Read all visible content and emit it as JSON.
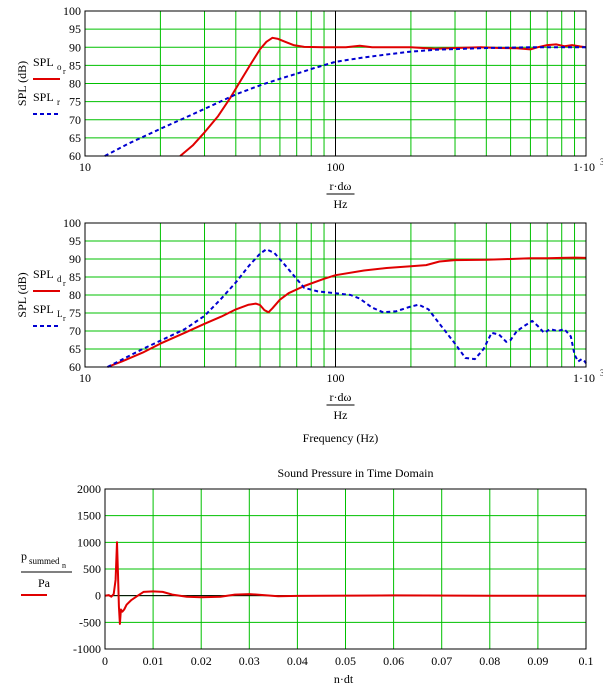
{
  "colors": {
    "grid_green": "#00c000",
    "grid_black": "#000000",
    "series_red": "#e00000",
    "series_blue": "#0000d0",
    "frame": "#000000"
  },
  "chart_data": [
    {
      "type": "line",
      "xscale": "log",
      "xlim": [
        10,
        1000
      ],
      "ylim": [
        60,
        100
      ],
      "title": "",
      "ylabel": "SPL (dB)",
      "xlabel_num": "r·dω",
      "xlabel_den": "Hz",
      "below_label": "",
      "x_tick_labels": [
        "10",
        "100",
        "1·10",
        "3"
      ],
      "y_ticks": [
        60,
        65,
        70,
        75,
        80,
        85,
        90,
        95,
        100
      ],
      "grid": true,
      "legend": "left",
      "series": [
        {
          "name": "SPL",
          "subscript": "o",
          "subscript2": "r",
          "color": "#e00000",
          "style": "solid",
          "points": [
            [
              24,
              60
            ],
            [
              27,
              63
            ],
            [
              30,
              66.5
            ],
            [
              34,
              71
            ],
            [
              38,
              76
            ],
            [
              42,
              81
            ],
            [
              46,
              85.5
            ],
            [
              50,
              89.5
            ],
            [
              53,
              91.5
            ],
            [
              56,
              92.6
            ],
            [
              59,
              92.3
            ],
            [
              63,
              91.5
            ],
            [
              68,
              90.6
            ],
            [
              75,
              90.1
            ],
            [
              90,
              90
            ],
            [
              110,
              90
            ],
            [
              125,
              90.4
            ],
            [
              140,
              90
            ],
            [
              170,
              90
            ],
            [
              200,
              90
            ],
            [
              250,
              89.6
            ],
            [
              300,
              89.8
            ],
            [
              380,
              90
            ],
            [
              450,
              89.8
            ],
            [
              530,
              89.7
            ],
            [
              600,
              89.4
            ],
            [
              640,
              90
            ],
            [
              700,
              90.6
            ],
            [
              760,
              90.8
            ],
            [
              820,
              90.3
            ],
            [
              880,
              90.6
            ],
            [
              950,
              90.2
            ],
            [
              1000,
              90
            ]
          ]
        },
        {
          "name": "SPL",
          "subscript": "r",
          "subscript2": "",
          "color": "#0000d0",
          "style": "dashed",
          "points": [
            [
              12,
              60
            ],
            [
              15,
              63.5
            ],
            [
              20,
              67.5
            ],
            [
              25,
              70.5
            ],
            [
              30,
              73
            ],
            [
              40,
              77
            ],
            [
              50,
              79.5
            ],
            [
              60,
              81.3
            ],
            [
              70,
              82.7
            ],
            [
              80,
              84
            ],
            [
              100,
              86
            ],
            [
              130,
              87.2
            ],
            [
              160,
              88
            ],
            [
              200,
              88.8
            ],
            [
              250,
              89.3
            ],
            [
              300,
              89.5
            ],
            [
              400,
              89.8
            ],
            [
              500,
              89.9
            ],
            [
              600,
              90
            ],
            [
              800,
              90
            ],
            [
              1000,
              90
            ]
          ]
        }
      ]
    },
    {
      "type": "line",
      "xscale": "log",
      "xlim": [
        10,
        1000
      ],
      "ylim": [
        60,
        100
      ],
      "title": "",
      "ylabel": "SPL (dB)",
      "xlabel_num": "r·dω",
      "xlabel_den": "Hz",
      "below_label": "Frequency (Hz)",
      "x_tick_labels": [
        "10",
        "100",
        "1·10",
        "3"
      ],
      "y_ticks": [
        60,
        65,
        70,
        75,
        80,
        85,
        90,
        95,
        100
      ],
      "grid": true,
      "legend": "left",
      "series": [
        {
          "name": "SPL",
          "subscript": "d",
          "subscript2": "r",
          "color": "#e00000",
          "style": "solid",
          "points": [
            [
              12.3,
              60
            ],
            [
              14,
              61.5
            ],
            [
              17,
              64
            ],
            [
              20,
              66.5
            ],
            [
              25,
              69.5
            ],
            [
              30,
              72
            ],
            [
              35,
              74
            ],
            [
              40,
              76
            ],
            [
              45,
              77.3
            ],
            [
              48,
              77.6
            ],
            [
              50,
              77.2
            ],
            [
              52,
              75.8
            ],
            [
              54,
              75.2
            ],
            [
              56,
              76.3
            ],
            [
              60,
              78.7
            ],
            [
              65,
              80.5
            ],
            [
              75,
              82.5
            ],
            [
              90,
              84.5
            ],
            [
              100,
              85.5
            ],
            [
              130,
              86.8
            ],
            [
              160,
              87.5
            ],
            [
              200,
              88
            ],
            [
              230,
              88.3
            ],
            [
              260,
              89.3
            ],
            [
              300,
              89.7
            ],
            [
              400,
              89.8
            ],
            [
              500,
              90
            ],
            [
              600,
              90.2
            ],
            [
              700,
              90.2
            ],
            [
              800,
              90.3
            ],
            [
              900,
              90.4
            ],
            [
              1000,
              90.3
            ]
          ]
        },
        {
          "name": "SPL",
          "subscript": "L",
          "subscript2": "r",
          "color": "#0000d0",
          "style": "dashed",
          "points": [
            [
              12.3,
              60
            ],
            [
              14,
              62
            ],
            [
              17,
              65
            ],
            [
              20,
              67.3
            ],
            [
              25,
              70.5
            ],
            [
              30,
              74.2
            ],
            [
              35,
              79
            ],
            [
              40,
              83.5
            ],
            [
              45,
              88
            ],
            [
              50,
              91.5
            ],
            [
              53,
              92.7
            ],
            [
              57,
              91.7
            ],
            [
              62,
              88.8
            ],
            [
              68,
              85.5
            ],
            [
              75,
              82
            ],
            [
              85,
              81
            ],
            [
              100,
              80.5
            ],
            [
              115,
              80
            ],
            [
              125,
              79
            ],
            [
              140,
              76.5
            ],
            [
              155,
              75.2
            ],
            [
              175,
              75.5
            ],
            [
              200,
              76.8
            ],
            [
              215,
              77.3
            ],
            [
              235,
              76
            ],
            [
              260,
              72
            ],
            [
              300,
              66.5
            ],
            [
              330,
              62.5
            ],
            [
              360,
              62.2
            ],
            [
              390,
              65
            ],
            [
              420,
              69.5
            ],
            [
              450,
              69
            ],
            [
              480,
              67
            ],
            [
              500,
              67.5
            ],
            [
              530,
              70
            ],
            [
              570,
              71.5
            ],
            [
              610,
              72.8
            ],
            [
              640,
              71.5
            ],
            [
              680,
              69.5
            ],
            [
              720,
              70.5
            ],
            [
              770,
              70
            ],
            [
              820,
              70.5
            ],
            [
              870,
              68.5
            ],
            [
              900,
              63.5
            ],
            [
              930,
              61.5
            ],
            [
              960,
              62.2
            ],
            [
              990,
              61.5
            ],
            [
              1000,
              61
            ]
          ]
        }
      ]
    },
    {
      "type": "line",
      "xscale": "linear",
      "xlim": [
        0,
        0.1
      ],
      "ylim": [
        -1000,
        2000
      ],
      "title": "Sound Pressure in Time Domain",
      "ylabel": "",
      "xlabel_num": "n·dt",
      "xlabel_den": "",
      "below_label": "",
      "x_ticks": [
        0,
        0.01,
        0.02,
        0.03,
        0.04,
        0.05,
        0.06,
        0.07,
        0.08,
        0.09,
        0.1
      ],
      "x_tick_labels": [
        "0",
        "0.01",
        "0.02",
        "0.03",
        "0.04",
        "0.05",
        "0.06",
        "0.07",
        "0.08",
        "0.09",
        "0.1"
      ],
      "y_ticks": [
        -1000,
        -500,
        0,
        500,
        1000,
        1500,
        2000
      ],
      "grid": true,
      "legend": "left",
      "series": [
        {
          "name": "p",
          "subscript": "summed",
          "subscript2": "n",
          "divisor": "Pa",
          "color": "#e00000",
          "style": "solid",
          "points": [
            [
              0,
              0
            ],
            [
              0.0008,
              10
            ],
            [
              0.0013,
              -20
            ],
            [
              0.0018,
              30
            ],
            [
              0.0022,
              300
            ],
            [
              0.0025,
              1000
            ],
            [
              0.0027,
              400
            ],
            [
              0.0029,
              -200
            ],
            [
              0.0031,
              -530
            ],
            [
              0.0033,
              -260
            ],
            [
              0.0036,
              -300
            ],
            [
              0.004,
              -260
            ],
            [
              0.0045,
              -170
            ],
            [
              0.0055,
              -80
            ],
            [
              0.007,
              10
            ],
            [
              0.008,
              70
            ],
            [
              0.01,
              80
            ],
            [
              0.012,
              70
            ],
            [
              0.014,
              20
            ],
            [
              0.017,
              -20
            ],
            [
              0.02,
              -30
            ],
            [
              0.024,
              -20
            ],
            [
              0.027,
              20
            ],
            [
              0.03,
              30
            ],
            [
              0.033,
              10
            ],
            [
              0.036,
              -10
            ],
            [
              0.04,
              -5
            ],
            [
              0.045,
              0
            ],
            [
              0.06,
              5
            ],
            [
              0.08,
              0
            ],
            [
              0.1,
              0
            ]
          ]
        }
      ]
    }
  ]
}
